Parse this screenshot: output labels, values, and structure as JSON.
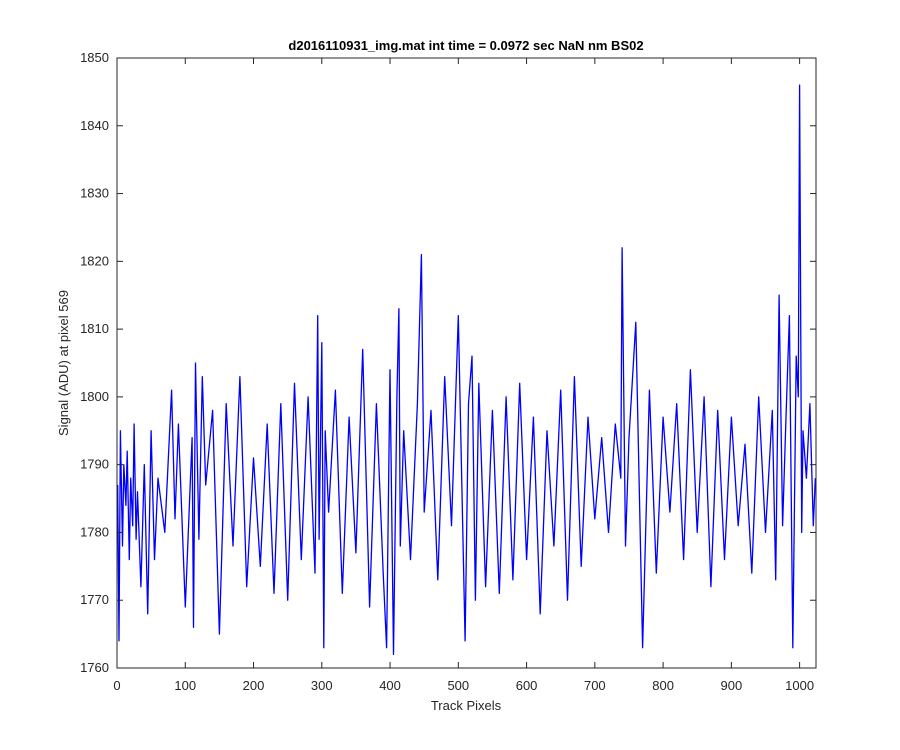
{
  "chart_data": {
    "type": "line",
    "title": "d2016110931_img.mat int time = 0.0972 sec  NaN nm BS02",
    "xlabel": "Track Pixels",
    "ylabel": "Signal (ADU) at pixel 569",
    "xlim": [
      0,
      1024
    ],
    "ylim": [
      1760,
      1850
    ],
    "xticks": [
      0,
      100,
      200,
      300,
      400,
      500,
      600,
      700,
      800,
      900,
      1000
    ],
    "yticks": [
      1760,
      1770,
      1780,
      1790,
      1800,
      1810,
      1820,
      1830,
      1840,
      1850
    ],
    "grid": false,
    "line_color": "#0000ff",
    "series": [
      {
        "x": [
          1,
          3,
          5,
          8,
          10,
          13,
          15,
          18,
          20,
          23,
          25,
          28,
          30,
          35,
          40,
          45,
          50,
          55,
          60,
          70,
          80,
          85,
          90,
          100,
          110,
          112,
          115,
          120,
          125,
          130,
          140,
          150,
          160,
          170,
          180,
          190,
          200,
          210,
          220,
          230,
          240,
          250,
          260,
          270,
          280,
          290,
          294,
          296,
          300,
          303,
          305,
          310,
          320,
          330,
          340,
          350,
          360,
          370,
          380,
          390,
          395,
          400,
          405,
          410,
          413,
          415,
          420,
          430,
          440,
          446,
          450,
          460,
          470,
          480,
          490,
          500,
          510,
          515,
          520,
          525,
          530,
          540,
          550,
          560,
          570,
          580,
          590,
          600,
          610,
          620,
          630,
          640,
          650,
          660,
          670,
          680,
          690,
          700,
          710,
          720,
          730,
          738,
          740,
          745,
          750,
          760,
          770,
          780,
          790,
          800,
          810,
          820,
          830,
          840,
          850,
          860,
          870,
          880,
          890,
          900,
          910,
          920,
          930,
          940,
          950,
          960,
          965,
          970,
          975,
          980,
          985,
          990,
          995,
          998,
          1000,
          1003,
          1005,
          1010,
          1015,
          1020,
          1023
        ],
        "y": [
          1787,
          1764,
          1795,
          1778,
          1790,
          1784,
          1792,
          1776,
          1788,
          1781,
          1796,
          1779,
          1786,
          1772,
          1790,
          1768,
          1795,
          1776,
          1788,
          1780,
          1801,
          1782,
          1796,
          1769,
          1794,
          1766,
          1805,
          1779,
          1803,
          1787,
          1798,
          1765,
          1799,
          1778,
          1803,
          1772,
          1791,
          1775,
          1796,
          1771,
          1799,
          1770,
          1802,
          1776,
          1800,
          1774,
          1812,
          1779,
          1808,
          1763,
          1795,
          1783,
          1801,
          1771,
          1797,
          1777,
          1807,
          1769,
          1799,
          1774,
          1763,
          1804,
          1762,
          1800,
          1813,
          1778,
          1795,
          1776,
          1799,
          1821,
          1783,
          1798,
          1773,
          1803,
          1781,
          1812,
          1764,
          1799,
          1806,
          1770,
          1802,
          1772,
          1798,
          1771,
          1800,
          1773,
          1802,
          1776,
          1797,
          1768,
          1795,
          1778,
          1801,
          1770,
          1803,
          1775,
          1797,
          1782,
          1794,
          1780,
          1796,
          1788,
          1822,
          1778,
          1794,
          1811,
          1763,
          1801,
          1774,
          1797,
          1783,
          1799,
          1776,
          1804,
          1780,
          1800,
          1772,
          1798,
          1776,
          1797,
          1781,
          1793,
          1774,
          1800,
          1780,
          1798,
          1773,
          1815,
          1781,
          1797,
          1812,
          1763,
          1806,
          1800,
          1846,
          1780,
          1795,
          1788,
          1799,
          1781,
          1788
        ]
      }
    ]
  }
}
